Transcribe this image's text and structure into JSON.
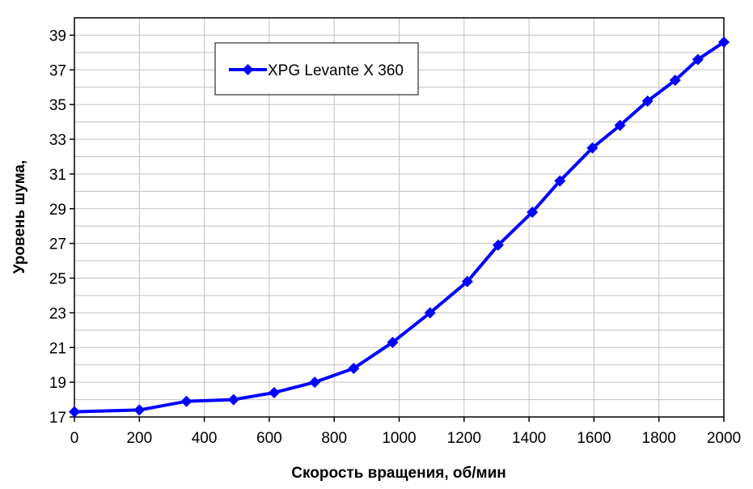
{
  "chart_data": {
    "type": "line",
    "title": "",
    "xlabel": "Скорость вращения, об/мин",
    "ylabel": "Уровень шума,",
    "xlim": [
      0,
      2000
    ],
    "ylim": [
      17,
      40
    ],
    "xticks": [
      0,
      200,
      400,
      600,
      800,
      1000,
      1200,
      1400,
      1600,
      1800,
      2000
    ],
    "yticks": [
      17,
      19,
      21,
      23,
      25,
      27,
      29,
      31,
      33,
      35,
      37,
      39
    ],
    "xgrid_step": 200,
    "ygrid_step": 1,
    "grid": true,
    "legend_position": "top-left",
    "series": [
      {
        "name": "XPG Levante X 360",
        "color": "#0000ff",
        "marker": "diamond",
        "x": [
          0,
          200,
          345,
          490,
          615,
          740,
          860,
          980,
          1095,
          1210,
          1305,
          1410,
          1495,
          1595,
          1680,
          1765,
          1850,
          1920,
          2000
        ],
        "y": [
          17.3,
          17.4,
          17.9,
          18.0,
          18.4,
          19.0,
          19.8,
          21.3,
          23.0,
          24.8,
          26.9,
          28.8,
          30.6,
          32.5,
          33.8,
          35.2,
          36.4,
          37.6,
          38.6
        ]
      }
    ]
  }
}
